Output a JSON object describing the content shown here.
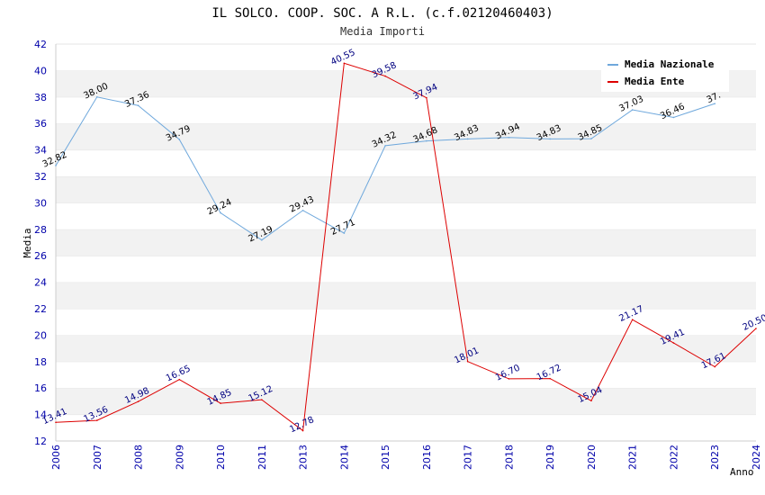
{
  "chart_data": {
    "type": "line",
    "title": "IL SOLCO. COOP. SOC. A R.L. (c.f.02120460403)",
    "subtitle": "Media Importi",
    "xlabel": "Anno",
    "ylabel": "Media",
    "ylim": [
      12,
      42
    ],
    "ytick_step": 2,
    "grid": true,
    "legend_position": "top-right",
    "categories": [
      "2006",
      "2007",
      "2008",
      "2009",
      "2010",
      "2011",
      "2013",
      "2014",
      "2015",
      "2016",
      "2017",
      "2018",
      "2019",
      "2020",
      "2021",
      "2022",
      "2023",
      "2024"
    ],
    "series": [
      {
        "name": "Media Nazionale",
        "color": "#6fa8dc",
        "values": [
          32.82,
          38.0,
          37.36,
          34.79,
          29.24,
          27.19,
          29.43,
          27.71,
          34.32,
          34.68,
          34.83,
          34.94,
          34.83,
          34.85,
          37.03,
          36.46,
          37.5,
          null
        ],
        "labels": [
          "32.82",
          "38.00",
          "37.36",
          "34.79",
          "29.24",
          "27.19",
          "29.43",
          "27.71",
          "34.32",
          "34.68",
          "34.83",
          "34.94",
          "34.83",
          "34.85",
          "37.03",
          "36.46",
          "37.",
          ""
        ]
      },
      {
        "name": "Media Ente",
        "color": "#dd0000",
        "values": [
          13.41,
          13.56,
          14.98,
          16.65,
          14.85,
          15.12,
          12.78,
          40.55,
          39.58,
          37.94,
          18.01,
          16.7,
          16.72,
          15.04,
          21.17,
          19.41,
          17.61,
          20.5
        ],
        "labels": [
          "13.41",
          "13.56",
          "14.98",
          "16.65",
          "14.85",
          "15.12",
          "12.78",
          "40.55",
          "39.58",
          "37.94",
          "18.01",
          "16.70",
          "16.72",
          "15.04",
          "21.17",
          "19.41",
          "17.61",
          "20.50"
        ]
      }
    ]
  }
}
